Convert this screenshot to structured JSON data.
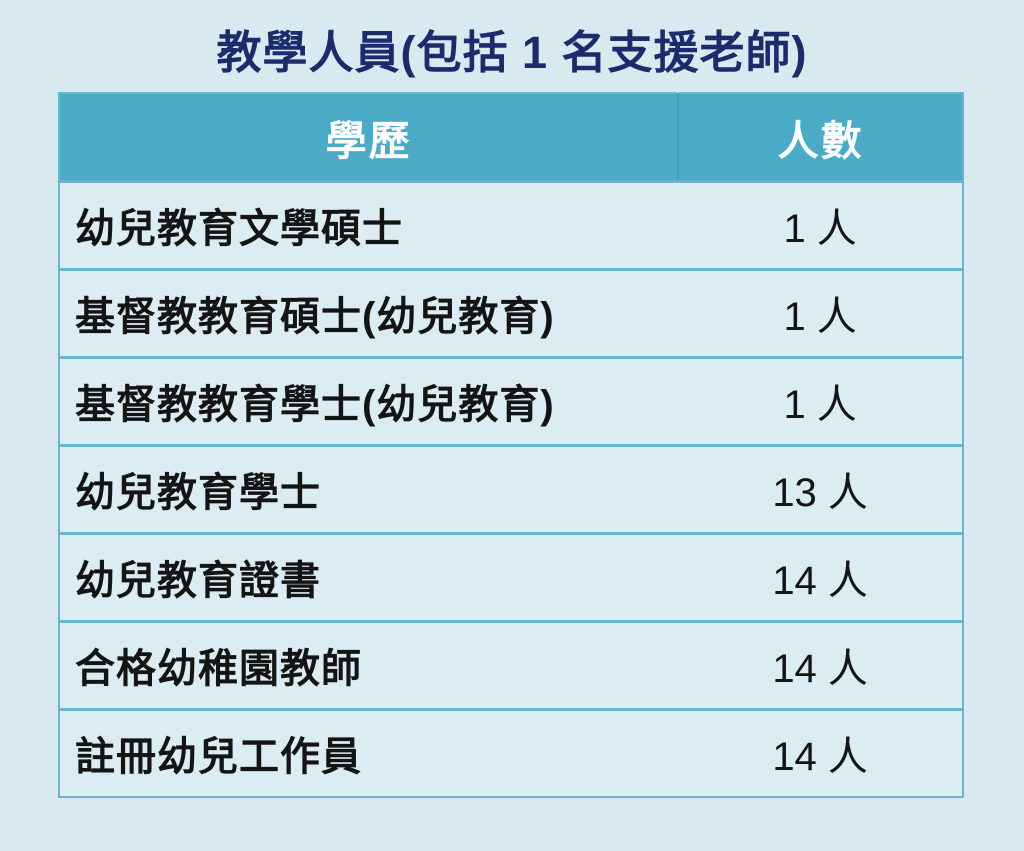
{
  "title": "教學人員(包括 1 名支援老師)",
  "table": {
    "headers": [
      "學歷",
      "人數"
    ],
    "rows": [
      {
        "qualification": "幼兒教育文學碩士",
        "count": "1 人"
      },
      {
        "qualification": "基督教教育碩士(幼兒教育)",
        "count": "1 人"
      },
      {
        "qualification": "基督教教育學士(幼兒教育)",
        "count": "1 人"
      },
      {
        "qualification": "幼兒教育學士",
        "count": "13 人"
      },
      {
        "qualification": "幼兒教育證書",
        "count": "14 人"
      },
      {
        "qualification": "合格幼稚園教師",
        "count": "14 人"
      },
      {
        "qualification": "註冊幼兒工作員",
        "count": "14 人"
      }
    ]
  },
  "chart_data": {
    "type": "table",
    "title": "教學人員(包括 1 名支援老師)",
    "columns": [
      "學歷",
      "人數"
    ],
    "categories": [
      "幼兒教育文學碩士",
      "基督教教育碩士(幼兒教育)",
      "基督教教育學士(幼兒教育)",
      "幼兒教育學士",
      "幼兒教育證書",
      "合格幼稚園教師",
      "註冊幼兒工作員"
    ],
    "values": [
      1,
      1,
      1,
      13,
      14,
      14,
      14
    ],
    "unit": "人"
  },
  "colors": {
    "page_background": "#d8eaf0",
    "header_background": "#4babc6",
    "row_background": "#dbedf3",
    "border_teal": "#69b6cc",
    "title_navy": "#1b2b6b",
    "header_text": "#ffffff",
    "body_text": "#141414"
  }
}
